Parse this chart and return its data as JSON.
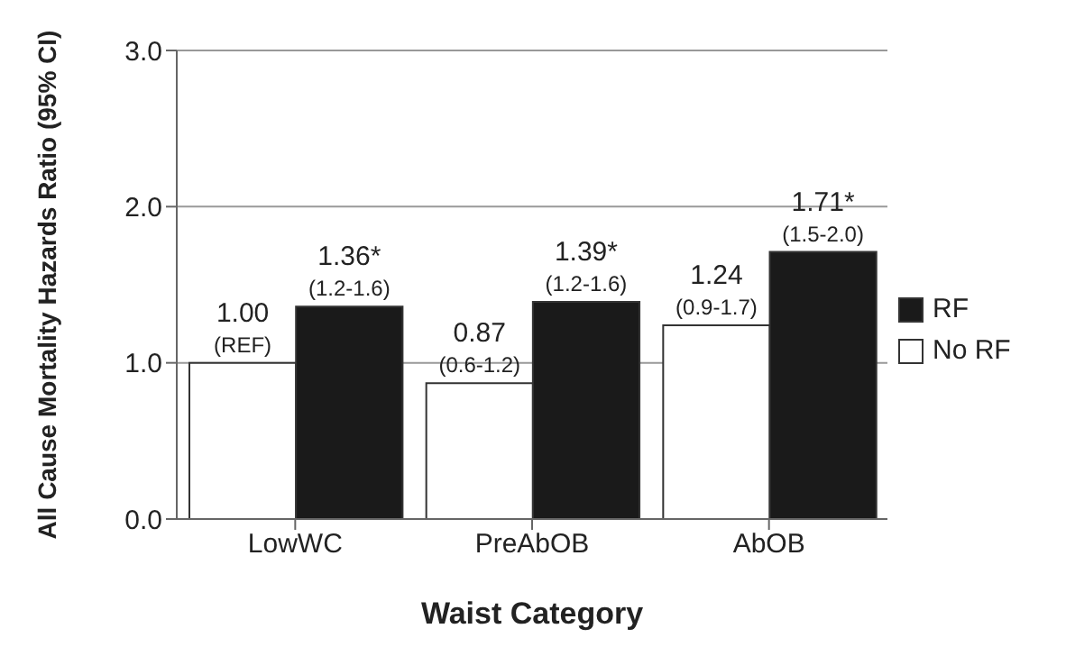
{
  "chart_data": {
    "type": "bar",
    "xlabel": "Waist Category",
    "ylabel": "All Cause Mortality Hazards Ratio (95% CI)",
    "categories": [
      "LowWC",
      "PreAbOB",
      "AbOB"
    ],
    "series": [
      {
        "name": "No RF",
        "color": "#ffffff",
        "values": [
          1.0,
          0.87,
          1.24
        ],
        "value_labels": [
          "1.00\n(REF)",
          "0.87\n(0.6-1.2)",
          "1.24\n(0.9-1.7)"
        ]
      },
      {
        "name": "RF",
        "color": "#1a1a1a",
        "values": [
          1.36,
          1.39,
          1.71
        ],
        "value_labels": [
          "1.36*\n(1.2-1.6)",
          "1.39*\n(1.2-1.6)",
          "1.71*\n(1.5-2.0)"
        ]
      }
    ],
    "ylim": [
      0,
      3
    ],
    "yticks": [
      {
        "value": 0,
        "label": "0.0"
      },
      {
        "value": 1,
        "label": "1.0"
      },
      {
        "value": 2,
        "label": "2.0"
      },
      {
        "value": 3,
        "label": "3.0"
      }
    ],
    "grid": "y",
    "legend": "right"
  }
}
